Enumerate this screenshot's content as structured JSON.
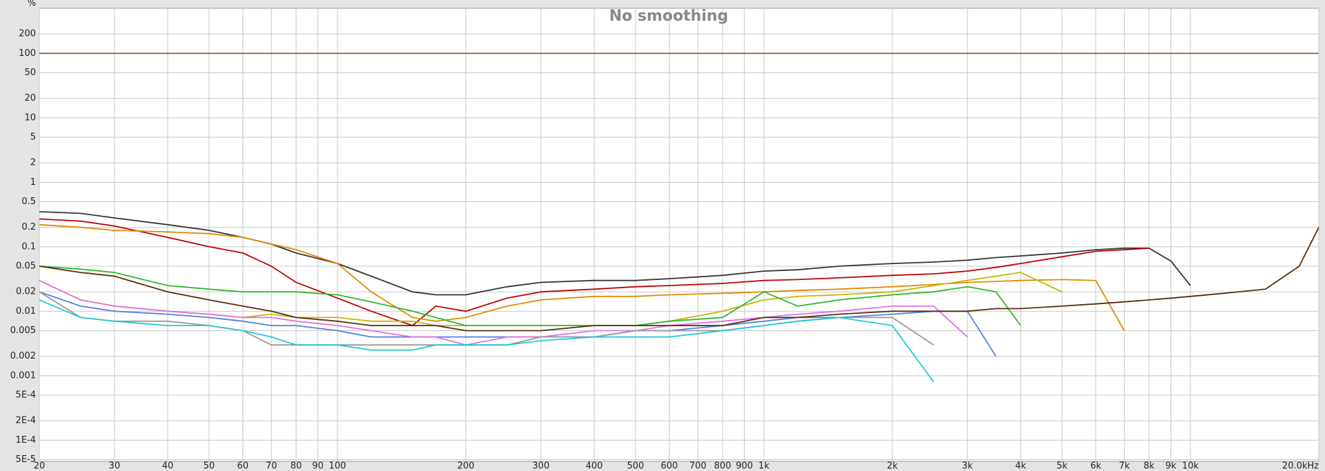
{
  "chart_data": {
    "type": "line",
    "title": "No smoothing",
    "ylabel": "%",
    "log_x": true,
    "log_y": true,
    "grid": true,
    "xlim": [
      20,
      20000
    ],
    "ylim": [
      4.7e-05,
      500
    ],
    "xticks": [
      20,
      30,
      40,
      50,
      60,
      70,
      80,
      90,
      100,
      200,
      300,
      400,
      500,
      600,
      700,
      800,
      900,
      {
        "value": 1000,
        "label": "1k"
      },
      {
        "value": 2000,
        "label": "2k"
      },
      {
        "value": 3000,
        "label": "3k"
      },
      {
        "value": 4000,
        "label": "4k"
      },
      {
        "value": 5000,
        "label": "5k"
      },
      {
        "value": 6000,
        "label": "6k"
      },
      {
        "value": 7000,
        "label": "7k"
      },
      {
        "value": 8000,
        "label": "8k"
      },
      {
        "value": 9000,
        "label": "9k"
      },
      {
        "value": 10000,
        "label": "10k"
      },
      {
        "value": 20000,
        "label": "20.0kHz"
      }
    ],
    "yticks": [
      200,
      100,
      50,
      20,
      10,
      5,
      2,
      1,
      0.5,
      0.2,
      0.1,
      0.05,
      0.02,
      0.01,
      0.005,
      0.002,
      0.001,
      {
        "value": 0.0005,
        "label": "5E-4"
      },
      {
        "value": 0.0002,
        "label": "2E-4"
      },
      {
        "value": 0.0001,
        "label": "1E-4"
      },
      {
        "value": 5e-05,
        "label": "5E-5"
      }
    ],
    "x": [
      20,
      25,
      30,
      40,
      50,
      60,
      70,
      80,
      100,
      120,
      150,
      170,
      200,
      250,
      300,
      400,
      500,
      600,
      800,
      1000,
      1200,
      1500,
      2000,
      2500,
      3000,
      3500,
      4000,
      5000,
      6000,
      7000,
      8000,
      9000,
      10000,
      12000,
      15000,
      18000,
      20000
    ],
    "series": [
      {
        "color": "#a0522d",
        "values": [
          100,
          100,
          100,
          100,
          100,
          100,
          100,
          100,
          100,
          100,
          100,
          100,
          100,
          100,
          100,
          100,
          100,
          100,
          100,
          100,
          100,
          100,
          100,
          100,
          100,
          100,
          100,
          100,
          100,
          100,
          100,
          100,
          100,
          100,
          100,
          100,
          100
        ]
      },
      {
        "color": "#333333",
        "values": [
          0.35,
          0.33,
          0.28,
          0.22,
          0.18,
          0.14,
          0.11,
          0.08,
          0.055,
          0.035,
          0.02,
          0.018,
          0.018,
          0.024,
          0.028,
          0.03,
          0.03,
          0.032,
          0.036,
          0.042,
          0.044,
          0.05,
          0.055,
          0.058,
          0.062,
          0.068,
          0.072,
          0.08,
          0.09,
          0.095,
          0.095,
          0.06,
          0.025,
          null,
          null,
          null,
          null
        ]
      },
      {
        "color": "#c00000",
        "values": [
          0.27,
          0.25,
          0.21,
          0.14,
          0.1,
          0.08,
          0.05,
          0.028,
          0.016,
          0.01,
          0.006,
          0.012,
          0.01,
          0.016,
          0.02,
          0.022,
          0.024,
          0.025,
          0.027,
          0.03,
          0.031,
          0.033,
          0.036,
          0.038,
          0.042,
          0.048,
          0.055,
          0.07,
          0.085,
          0.09,
          0.095,
          null,
          null,
          null,
          null,
          null,
          null
        ]
      },
      {
        "color": "#e08a00",
        "values": [
          0.22,
          0.2,
          0.18,
          0.17,
          0.16,
          0.14,
          0.11,
          0.09,
          0.055,
          0.02,
          0.008,
          0.007,
          0.008,
          0.012,
          0.015,
          0.017,
          0.017,
          0.018,
          0.019,
          0.02,
          0.021,
          0.022,
          0.024,
          0.026,
          0.028,
          0.029,
          0.03,
          0.031,
          0.03,
          0.005,
          null,
          null,
          null,
          null,
          null,
          null,
          null
        ]
      },
      {
        "color": "#c8b400",
        "values": [
          0.03,
          0.015,
          0.012,
          0.01,
          0.009,
          0.008,
          0.009,
          0.008,
          0.008,
          0.007,
          0.007,
          0.006,
          0.006,
          0.006,
          0.006,
          0.006,
          0.006,
          0.007,
          0.01,
          0.015,
          0.017,
          0.018,
          0.02,
          0.025,
          0.03,
          0.035,
          0.04,
          0.02,
          null,
          null,
          null,
          null,
          null,
          null,
          null,
          null,
          null
        ]
      },
      {
        "color": "#2db82d",
        "values": [
          0.05,
          0.045,
          0.04,
          0.025,
          0.022,
          0.02,
          0.02,
          0.02,
          0.018,
          0.014,
          0.01,
          0.008,
          0.006,
          0.006,
          0.006,
          0.006,
          0.006,
          0.007,
          0.008,
          0.02,
          0.012,
          0.015,
          0.018,
          0.02,
          0.024,
          0.02,
          0.006,
          null,
          null,
          null,
          null,
          null,
          null,
          null,
          null,
          null,
          null
        ]
      },
      {
        "color": "#5080e0",
        "values": [
          0.02,
          0.012,
          0.01,
          0.009,
          0.008,
          0.007,
          0.006,
          0.006,
          0.005,
          0.004,
          0.004,
          0.004,
          0.004,
          0.004,
          0.004,
          0.004,
          0.005,
          0.005,
          0.006,
          0.007,
          0.008,
          0.008,
          0.009,
          0.01,
          0.01,
          0.002,
          null,
          null,
          null,
          null,
          null,
          null,
          null,
          null,
          null,
          null,
          null
        ]
      },
      {
        "color": "#e070e0",
        "values": [
          0.03,
          0.015,
          0.012,
          0.01,
          0.009,
          0.008,
          0.008,
          0.007,
          0.006,
          0.005,
          0.004,
          0.004,
          0.003,
          0.004,
          0.004,
          0.005,
          0.005,
          0.006,
          0.007,
          0.008,
          0.009,
          0.01,
          0.012,
          0.012,
          0.004,
          null,
          null,
          null,
          null,
          null,
          null,
          null,
          null,
          null,
          null,
          null,
          null
        ]
      },
      {
        "color": "#999999",
        "values": [
          0.02,
          0.008,
          0.007,
          0.007,
          0.006,
          0.005,
          0.003,
          0.003,
          0.003,
          0.003,
          0.003,
          0.003,
          0.003,
          0.003,
          0.004,
          0.004,
          0.005,
          0.005,
          0.005,
          0.006,
          0.007,
          0.008,
          0.008,
          0.003,
          null,
          null,
          null,
          null,
          null,
          null,
          null,
          null,
          null,
          null,
          null,
          null,
          null
        ]
      },
      {
        "color": "#20c8d8",
        "values": [
          0.015,
          0.008,
          0.007,
          0.006,
          0.006,
          0.005,
          0.004,
          0.003,
          0.003,
          0.0025,
          0.0025,
          0.003,
          0.003,
          0.003,
          0.0035,
          0.004,
          0.004,
          0.004,
          0.005,
          0.006,
          0.007,
          0.008,
          0.006,
          0.0008,
          null,
          null,
          null,
          null,
          null,
          null,
          null,
          null,
          null,
          null,
          null,
          null,
          null
        ]
      },
      {
        "color": "#5a2a0a",
        "values": [
          0.05,
          0.04,
          0.035,
          0.02,
          0.015,
          0.012,
          0.01,
          0.008,
          0.007,
          0.006,
          0.006,
          0.006,
          0.005,
          0.005,
          0.005,
          0.006,
          0.006,
          0.006,
          0.006,
          0.008,
          0.008,
          0.009,
          0.01,
          0.01,
          0.01,
          0.011,
          0.011,
          0.012,
          0.013,
          0.014,
          0.015,
          0.016,
          0.017,
          0.019,
          0.022,
          0.05,
          0.2
        ]
      }
    ]
  }
}
